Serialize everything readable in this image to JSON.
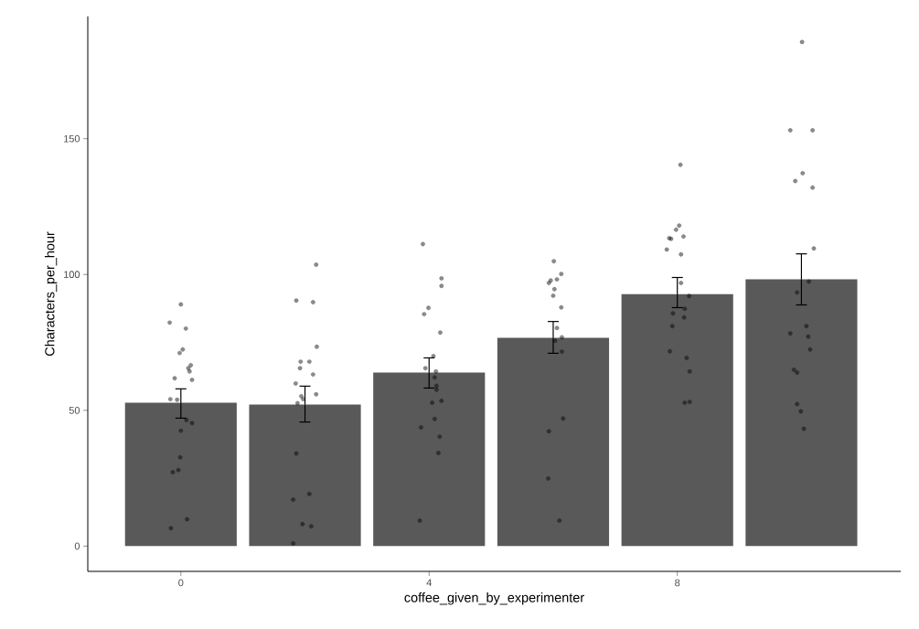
{
  "chart_data": {
    "type": "bar",
    "xlabel": "coffee_given_by_experimenter",
    "ylabel": "Characters_per_hour",
    "xlim": [
      -1.5,
      11.6
    ],
    "ylim": [
      -9.3,
      195
    ],
    "xticks": [
      0,
      4,
      8
    ],
    "yticks": [
      0,
      50,
      100,
      150
    ],
    "grid": false,
    "series": [
      {
        "color": "#595959",
        "x": [
          0,
          2,
          4,
          6,
          8,
          10
        ],
        "values": [
          52.8,
          52.1,
          63.9,
          76.7,
          92.8,
          98.2
        ],
        "errors": [
          [
            47.1,
            57.9
          ],
          [
            45.7,
            58.9
          ],
          [
            58.2,
            69.3
          ],
          [
            71.0,
            82.7
          ],
          [
            87.8,
            98.9
          ],
          [
            88.8,
            107.6
          ]
        ]
      },
      {
        "type": "scatter",
        "color": "#000000",
        "marker": "circle",
        "x": [
          0.0,
          -0.18,
          0.08,
          0.03,
          -0.02,
          0.16,
          0.12,
          0.14,
          -0.1,
          0.18,
          -0.17,
          -0.06,
          0.09,
          0.18,
          0.0,
          -0.01,
          -0.04,
          -0.13,
          0.1,
          -0.16,
          1.86,
          2.13,
          2.19,
          1.93,
          2.07,
          1.92,
          2.13,
          1.85,
          2.18,
          1.94,
          1.97,
          1.88,
          1.86,
          2.07,
          1.81,
          1.96,
          2.1,
          1.81,
          2.18,
          3.9,
          4.2,
          4.2,
          3.99,
          3.92,
          4.18,
          4.07,
          3.94,
          4.11,
          4.09,
          4.12,
          4.12,
          4.2,
          4.05,
          4.09,
          3.87,
          4.17,
          4.15,
          3.85,
          6.01,
          6.13,
          6.06,
          5.96,
          5.93,
          6.02,
          6.0,
          6.13,
          6.06,
          6.14,
          6.03,
          6.14,
          6.16,
          5.93,
          5.92,
          6.1,
          8.05,
          8.03,
          7.98,
          7.87,
          7.9,
          8.1,
          7.83,
          8.06,
          8.06,
          8.19,
          8.12,
          7.93,
          8.11,
          7.92,
          7.88,
          8.15,
          8.2,
          8.12,
          8.2,
          10.01,
          9.82,
          10.18,
          10.02,
          9.9,
          10.18,
          10.2,
          10.12,
          9.93,
          10.08,
          9.82,
          10.11,
          10.14,
          9.88,
          9.93,
          9.93,
          9.99,
          10.04
        ],
        "values": [
          89.0,
          82.3,
          80.1,
          72.4,
          71.1,
          66.6,
          65.5,
          64.3,
          61.8,
          61.2,
          54.1,
          53.9,
          46.4,
          45.3,
          42.5,
          32.7,
          28.0,
          27.2,
          9.9,
          6.6,
          90.4,
          89.8,
          73.4,
          67.9,
          67.9,
          65.5,
          63.2,
          59.9,
          55.9,
          55.2,
          54.1,
          52.6,
          34.1,
          19.2,
          17.1,
          8.1,
          7.3,
          1.0,
          103.6,
          111.2,
          98.6,
          95.8,
          87.7,
          85.4,
          78.6,
          70.0,
          65.5,
          64.3,
          62.1,
          59.0,
          57.6,
          53.5,
          52.8,
          46.8,
          43.7,
          40.3,
          34.3,
          9.4,
          104.9,
          100.2,
          98.2,
          97.8,
          96.9,
          94.6,
          92.2,
          87.9,
          80.3,
          76.9,
          75.6,
          71.6,
          47.0,
          42.3,
          24.9,
          9.4,
          140.4,
          118.0,
          116.5,
          113.4,
          113.1,
          114.0,
          109.2,
          107.4,
          96.9,
          92.1,
          87.4,
          85.7,
          84.2,
          81.0,
          71.7,
          69.3,
          64.3,
          52.8,
          53.1,
          185.6,
          153.1,
          153.1,
          137.3,
          134.4,
          132.0,
          109.6,
          97.4,
          93.4,
          81.0,
          78.3,
          77.1,
          72.4,
          64.9,
          63.9,
          52.3,
          49.6,
          43.2
        ]
      }
    ]
  }
}
